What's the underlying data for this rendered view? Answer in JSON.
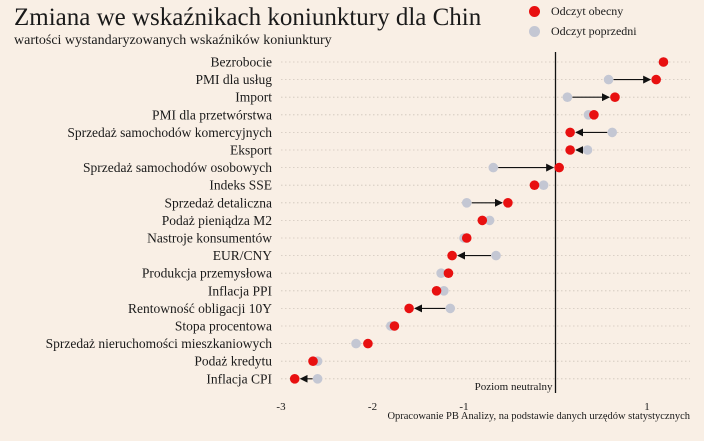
{
  "header": {
    "title": "Zmiana we wskaźnikach koniunktury dla Chin",
    "subtitle": "wartości wystandaryzowanych wskaźników koniunktury"
  },
  "legend": {
    "current": "Odczyt obecny",
    "previous": "Odczyt poprzedni"
  },
  "footer": {
    "source": "Opracowanie PB Analizy, na podstawie danych urzędów statystycznych"
  },
  "chart_data": {
    "type": "dot-arrow",
    "title": "Zmiana we wskaźnikach koniunktury dla Chin",
    "subtitle": "wartości wystandaryzowanych wskaźników koniunktury",
    "colors": {
      "current": "#e81010",
      "previous": "#c4c7d3",
      "arrow": "#111111",
      "grid": "#cfc5bb"
    },
    "xlim": [
      -3,
      1.3
    ],
    "xticks": [
      -3,
      -2,
      -1,
      1
    ],
    "neutral_label": "Poziom neutralny",
    "grid": "dotted horizontal",
    "legend_position": "top-right",
    "categories": [
      "Bezrobocie",
      "PMI dla usług",
      "Import",
      "PMI dla przetwórstwa",
      "Sprzedaż samochodów komercyjnych",
      "Eksport",
      "Sprzedaż samochodów osobowych",
      "Indeks SSE",
      "Sprzedaż detaliczna",
      "Podaż pieniądza M2",
      "Nastroje konsumentów",
      "EUR/CNY",
      "Produkcja przemysłowa",
      "Inflacja PPI",
      "Rentowność obligacji 10Y",
      "Stopa procentowa",
      "Sprzedaż nieruchomości mieszkaniowych",
      "Podaż kredytu",
      "Inflacja CPI"
    ],
    "series": [
      {
        "name": "Odczyt obecny",
        "values": [
          1.18,
          1.1,
          0.65,
          0.42,
          0.16,
          0.16,
          0.04,
          -0.23,
          -0.52,
          -0.8,
          -0.97,
          -1.13,
          -1.17,
          -1.3,
          -1.6,
          -1.76,
          -2.05,
          -2.65,
          -2.85
        ]
      },
      {
        "name": "Odczyt poprzedni",
        "values": [
          1.18,
          0.58,
          0.13,
          0.36,
          0.62,
          0.35,
          -0.68,
          -0.13,
          -0.97,
          -0.72,
          -1.0,
          -0.65,
          -1.25,
          -1.22,
          -1.15,
          -1.8,
          -2.18,
          -2.6,
          -2.6
        ]
      }
    ]
  }
}
